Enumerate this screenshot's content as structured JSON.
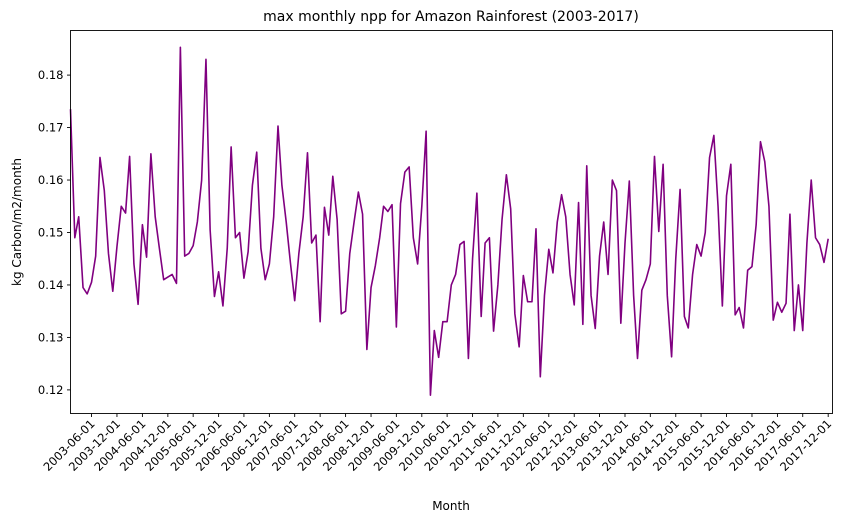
{
  "chart_data": {
    "type": "line",
    "title": "max monthly npp for Amazon Rainforest (2003-2017)",
    "xlabel": "Month",
    "ylabel": "kg Carbon/m2/month",
    "x_range": [
      "2003-01-01",
      "2018-01-01"
    ],
    "ylim": [
      0.1155,
      0.1885
    ],
    "grid": false,
    "line_color": "#800080",
    "x_ticks": [
      "2003-06-01",
      "2003-12-01",
      "2004-06-01",
      "2004-12-01",
      "2005-06-01",
      "2005-12-01",
      "2006-06-01",
      "2006-12-01",
      "2007-06-01",
      "2007-12-01",
      "2008-06-01",
      "2008-12-01",
      "2009-06-01",
      "2009-12-01",
      "2010-06-01",
      "2010-12-01",
      "2011-06-01",
      "2011-12-01",
      "2012-06-01",
      "2012-12-01",
      "2013-06-01",
      "2013-12-01",
      "2014-06-01",
      "2014-12-01",
      "2015-06-01",
      "2015-12-01",
      "2016-06-01",
      "2016-12-01",
      "2017-06-01",
      "2017-12-01"
    ],
    "y_ticks": [
      0.12,
      0.13,
      0.14,
      0.15,
      0.16,
      0.17,
      0.18
    ],
    "y_tick_labels": [
      "0.12",
      "0.13",
      "0.14",
      "0.15",
      "0.16",
      "0.17",
      "0.18"
    ],
    "series": [
      {
        "start": "2003-01",
        "values": [
          0.1735,
          0.149,
          0.153,
          0.1395,
          0.1383,
          0.1405,
          0.1455,
          0.1643,
          0.158,
          0.146,
          0.1388,
          0.1473,
          0.155,
          0.1537,
          0.1645,
          0.144,
          0.1363,
          0.1515,
          0.1453,
          0.165,
          0.153,
          0.147,
          0.141,
          0.1415,
          0.142,
          0.1403,
          0.1853,
          0.1455,
          0.146,
          0.1475,
          0.152,
          0.16,
          0.183,
          0.1505,
          0.1378,
          0.1425,
          0.136,
          0.147,
          0.1663,
          0.149,
          0.15,
          0.1413,
          0.1463,
          0.159,
          0.1653,
          0.147,
          0.141,
          0.144,
          0.153,
          0.1703,
          0.159,
          0.152,
          0.1443,
          0.137,
          0.146,
          0.153,
          0.1652,
          0.148,
          0.1495,
          0.133,
          0.1548,
          0.1495,
          0.1607,
          0.1525,
          0.1345,
          0.135,
          0.146,
          0.152,
          0.1577,
          0.1535,
          0.1277,
          0.1395,
          0.1437,
          0.149,
          0.155,
          0.154,
          0.1553,
          0.132,
          0.1555,
          0.1615,
          0.1625,
          0.149,
          0.144,
          0.155,
          0.1693,
          0.119,
          0.1313,
          0.1262,
          0.133,
          0.133,
          0.14,
          0.142,
          0.1477,
          0.1483,
          0.126,
          0.145,
          0.1575,
          0.134,
          0.148,
          0.149,
          0.1312,
          0.14,
          0.1525,
          0.161,
          0.1545,
          0.1345,
          0.1282,
          0.1418,
          0.1368,
          0.1368,
          0.1507,
          0.1225,
          0.138,
          0.1468,
          0.1423,
          0.152,
          0.1572,
          0.153,
          0.142,
          0.1362,
          0.1557,
          0.1325,
          0.1627,
          0.138,
          0.1317,
          0.1455,
          0.152,
          0.142,
          0.16,
          0.158,
          0.1327,
          0.148,
          0.1598,
          0.138,
          0.126,
          0.139,
          0.141,
          0.144,
          0.1645,
          0.1502,
          0.163,
          0.138,
          0.1263,
          0.145,
          0.1582,
          0.134,
          0.1318,
          0.142,
          0.1477,
          0.1455,
          0.15,
          0.1643,
          0.1685,
          0.155,
          0.136,
          0.157,
          0.163,
          0.1343,
          0.1357,
          0.1318,
          0.1428,
          0.1435,
          0.1515,
          0.1673,
          0.1635,
          0.155,
          0.1333,
          0.1367,
          0.1348,
          0.1365,
          0.1535,
          0.1313,
          0.14,
          0.1313,
          0.148,
          0.16,
          0.149,
          0.1477,
          0.1443,
          0.1488
        ]
      }
    ]
  }
}
